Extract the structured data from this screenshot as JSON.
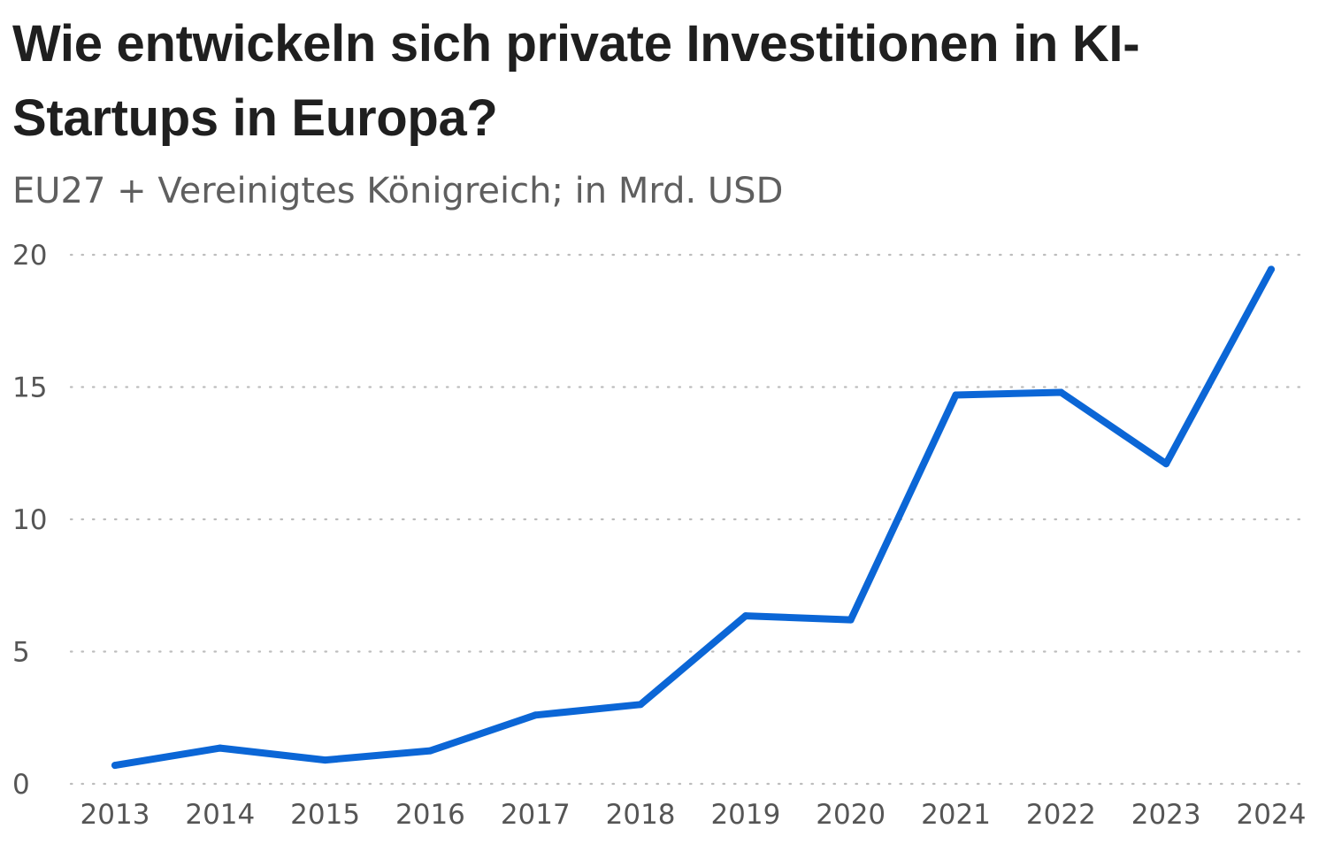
{
  "title": "Wie entwickeln sich private Investitionen in KI-Startups in Europa?",
  "subtitle": "EU27 + Vereinigtes Königreich; in Mrd. USD",
  "colors": {
    "line": "#0b66d6",
    "grid": "#bdbdbd",
    "text": "#1f1f1f",
    "muted": "#5f5f5f"
  },
  "chart_data": {
    "type": "line",
    "title": "Wie entwickeln sich private Investitionen in KI-Startups in Europa?",
    "subtitle": "EU27 + Vereinigtes Königreich; in Mrd. USD",
    "xlabel": "",
    "ylabel": "",
    "categories": [
      "2013",
      "2014",
      "2015",
      "2016",
      "2017",
      "2018",
      "2019",
      "2020",
      "2021",
      "2022",
      "2023",
      "2024"
    ],
    "series": [
      {
        "values": [
          0.7,
          1.35,
          0.9,
          1.25,
          2.6,
          3.0,
          6.35,
          6.2,
          14.7,
          14.8,
          12.1,
          19.45
        ]
      }
    ],
    "ylim": [
      0,
      20
    ],
    "yticks": [
      "0",
      "5",
      "10",
      "15",
      "20"
    ],
    "grid": "horizontal-dotted",
    "legend": "none"
  }
}
